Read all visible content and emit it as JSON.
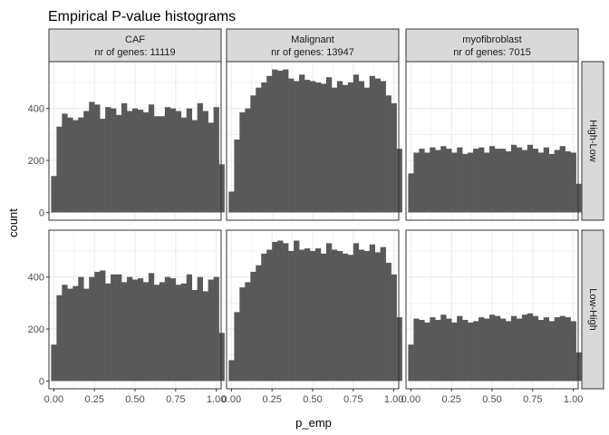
{
  "chart_data": {
    "type": "bar",
    "title": "Empirical P-value histograms",
    "xlabel": "p_emp",
    "ylabel": "count",
    "xlim": [
      -0.03,
      1.03
    ],
    "ylim": [
      -30,
      580
    ],
    "x_ticks": [
      0,
      0.25,
      0.5,
      0.75,
      1
    ],
    "x_tick_labels": [
      "0.00",
      "0.25",
      "0.50",
      "0.75",
      "1.00"
    ],
    "y_ticks": [
      0,
      200,
      400
    ],
    "y_tick_labels": [
      "0",
      "200",
      "400"
    ],
    "bin_width": 0.03333,
    "bar_color": "#595959",
    "panel_background": "#ffffff",
    "grid_color": "#ebebeb",
    "strip_fill": "#d9d9d9",
    "grid": true,
    "columns": [
      {
        "line1": "CAF",
        "line2": "nr of genes: 11119"
      },
      {
        "line1": "Malignant",
        "line2": "nr of genes: 13947"
      },
      {
        "line1": "myofibroblast",
        "line2": "nr of genes: 7015"
      }
    ],
    "rows": [
      {
        "label": "High-Low"
      },
      {
        "label": "Low-High"
      }
    ],
    "panels": [
      {
        "row": 0,
        "col": 0,
        "values": [
          140,
          330,
          380,
          365,
          355,
          365,
          390,
          425,
          415,
          360,
          405,
          400,
          375,
          420,
          390,
          400,
          395,
          385,
          415,
          370,
          370,
          405,
          400,
          390,
          365,
          400,
          355,
          420,
          390,
          345,
          405,
          185
        ]
      },
      {
        "row": 0,
        "col": 1,
        "values": [
          80,
          280,
          385,
          400,
          450,
          480,
          500,
          525,
          550,
          545,
          550,
          515,
          505,
          530,
          510,
          505,
          500,
          495,
          520,
          480,
          505,
          490,
          500,
          530,
          505,
          480,
          525,
          515,
          505,
          450,
          420,
          245
        ]
      },
      {
        "row": 0,
        "col": 2,
        "values": [
          150,
          230,
          245,
          230,
          250,
          240,
          255,
          245,
          230,
          250,
          225,
          230,
          245,
          250,
          230,
          255,
          245,
          245,
          235,
          260,
          250,
          240,
          260,
          245,
          230,
          250,
          225,
          240,
          255,
          235,
          230,
          110
        ]
      },
      {
        "row": 1,
        "col": 0,
        "values": [
          140,
          330,
          370,
          355,
          365,
          400,
          355,
          400,
          420,
          425,
          375,
          410,
          410,
          380,
          400,
          390,
          395,
          380,
          415,
          370,
          380,
          400,
          395,
          370,
          375,
          410,
          350,
          400,
          345,
          390,
          400,
          185
        ]
      },
      {
        "row": 1,
        "col": 1,
        "values": [
          80,
          265,
          360,
          380,
          420,
          445,
          490,
          505,
          535,
          540,
          530,
          500,
          540,
          505,
          510,
          500,
          510,
          490,
          530,
          505,
          500,
          490,
          485,
          530,
          505,
          500,
          525,
          495,
          515,
          455,
          410,
          245
        ]
      },
      {
        "row": 1,
        "col": 2,
        "values": [
          140,
          240,
          235,
          225,
          245,
          235,
          255,
          240,
          225,
          250,
          235,
          225,
          230,
          245,
          240,
          255,
          250,
          240,
          230,
          250,
          240,
          255,
          260,
          250,
          235,
          245,
          230,
          245,
          250,
          245,
          230,
          110
        ]
      }
    ]
  }
}
